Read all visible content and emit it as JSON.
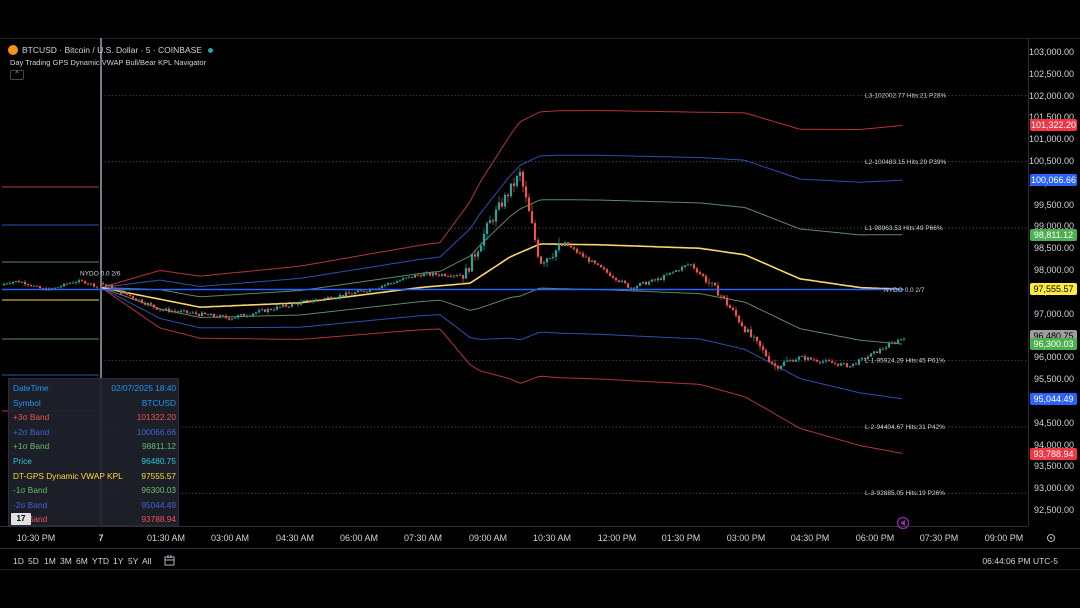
{
  "header": {
    "symbol_title": "BTCUSD · Bitcoin / U.S. Dollar · 5 · COINBASE",
    "indicator_name": "Day Trading GPS Dynamic VWAP Bull/Bear KPL Navigator",
    "collapse_glyph": "^"
  },
  "colors": {
    "background": "#000000",
    "up_candle": "#26a69a",
    "down_candle": "#ef5350",
    "vwap": "#f9d56e",
    "band_3": "#b2363a",
    "band_2": "#2f4fb0",
    "band_1": "#5f8a62",
    "kpl_line": "#2962ff"
  },
  "price_axis": {
    "ticks": [
      "103,000.00",
      "102,500.00",
      "102,000.00",
      "101,500.00",
      "101,000.00",
      "100,500.00",
      "100,000.00",
      "99,500.00",
      "99,000.00",
      "98,500.00",
      "98,000.00",
      "97,500.00",
      "97,000.00",
      "96,500.00",
      "96,000.00",
      "95,500.00",
      "95,000.00",
      "94,500.00",
      "94,000.00",
      "93,500.00",
      "93,000.00",
      "92,500.00"
    ],
    "labels": [
      {
        "text": "101,322.20",
        "bg": "#f23645",
        "fg": "#ffffff",
        "price": 101322.2
      },
      {
        "text": "100,066.66",
        "bg": "#2962ff",
        "fg": "#ffffff",
        "price": 100066.66
      },
      {
        "text": "98,811.12",
        "bg": "#4caf50",
        "fg": "#ffffff",
        "price": 98811.12
      },
      {
        "text": "97,555.57",
        "bg": "#ffeb3b",
        "fg": "#000000",
        "price": 97555.57
      },
      {
        "text": "96,480.75",
        "bg": "#9e9e9e",
        "fg": "#000000",
        "price": 96480.75
      },
      {
        "text": "96,300.03",
        "bg": "#4caf50",
        "fg": "#ffffff",
        "price": 96300.03
      },
      {
        "text": "95,044.49",
        "bg": "#2962ff",
        "fg": "#ffffff",
        "price": 95044.49
      },
      {
        "text": "93,788.94",
        "bg": "#f23645",
        "fg": "#ffffff",
        "price": 93788.94
      }
    ]
  },
  "time_axis": [
    "10:30 PM",
    "7",
    "01:30 AM",
    "03:00 AM",
    "04:30 AM",
    "06:00 AM",
    "07:30 AM",
    "09:00 AM",
    "10:30 AM",
    "12:00 PM",
    "01:30 PM",
    "03:00 PM",
    "04:30 PM",
    "06:00 PM",
    "07:30 PM",
    "09:00 PM"
  ],
  "levels": [
    {
      "text": "L3-102002.77 Hits:21 P28%",
      "price": 102002.77
    },
    {
      "text": "L2-100483.15 Hits:29 P39%",
      "price": 100483.15
    },
    {
      "text": "L1-98963.53 Hits:49 P66%",
      "price": 98963.53
    },
    {
      "text": "L-1-95924.29 Hits:45 P61%",
      "price": 95924.29
    },
    {
      "text": "L-2-94404.67 Hits:31 P42%",
      "price": 94404.67
    },
    {
      "text": "L-3-92885.05 Hits:19 P26%",
      "price": 92885.05
    }
  ],
  "nydo": [
    {
      "text": "NYDO 0.0 2/6"
    },
    {
      "text": "NYDO 0.0 2/7"
    }
  ],
  "data_window": {
    "rows": [
      {
        "label": "DateTime",
        "value": "02/07/2025 18:40",
        "color": "#2196f3"
      },
      {
        "label": "Symbol",
        "value": "BTCUSD",
        "color": "#2196f3"
      },
      {
        "label": "+3σ Band",
        "value": "101322.20",
        "color": "#ef5350"
      },
      {
        "label": "+2σ Band",
        "value": "100066.66",
        "color": "#3f63d6"
      },
      {
        "label": "+1σ Band",
        "value": "98811.12",
        "color": "#66bb6a"
      },
      {
        "label": "Price",
        "value": "96480.75",
        "color": "#26c6da"
      },
      {
        "label": "DT-GPS Dynamic VWAP KPL",
        "value": "97555.57",
        "color": "#fdd835"
      },
      {
        "label": "-1σ Band",
        "value": "96300.03",
        "color": "#66bb6a"
      },
      {
        "label": "-2σ Band",
        "value": "95044.49",
        "color": "#3f63d6"
      },
      {
        "label": "-3σ Band",
        "value": "93788.94",
        "color": "#ef5350"
      }
    ]
  },
  "tv_logo": "17",
  "bottom_bar": {
    "ranges": [
      "1D",
      "5D",
      "1M",
      "3M",
      "6M",
      "YTD",
      "1Y",
      "5Y",
      "All"
    ],
    "clock": "06:44:06 PM UTC-5"
  },
  "icons": {
    "compare": "calendar-range-icon",
    "settings": "settings-icon",
    "scroll": "scroll-to-realtime-icon"
  }
}
